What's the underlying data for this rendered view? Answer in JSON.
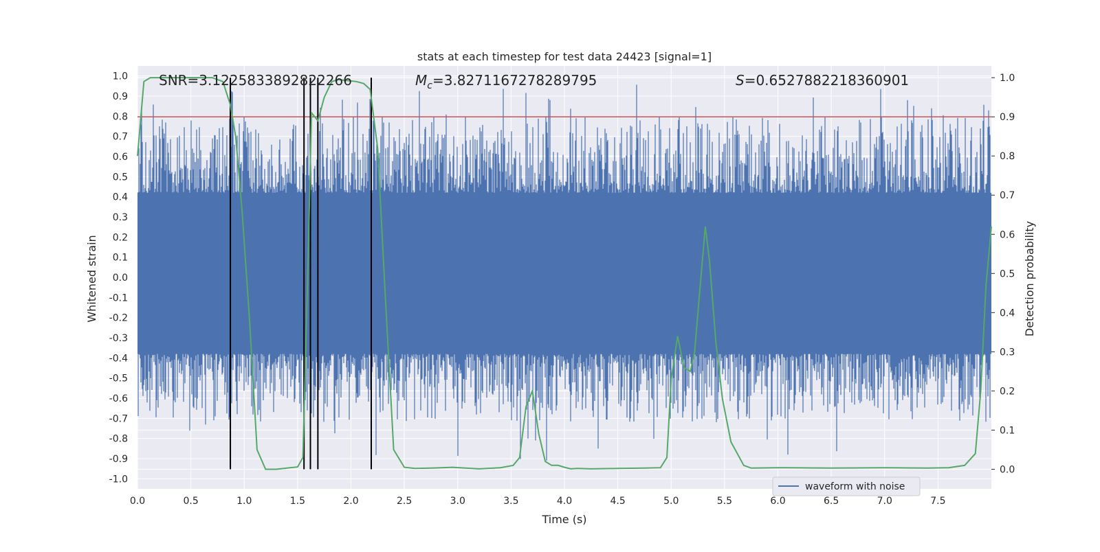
{
  "chart_data": {
    "type": "line",
    "title": "stats at each timestep for test data 24423 [signal=1]",
    "xlabel": "Time (s)",
    "ylabel_left": "Whitened strain",
    "ylabel_right": "Detection probability",
    "xlim": [
      0.0,
      8.0
    ],
    "ylim_left": [
      -1.05,
      1.05
    ],
    "ylim_right": [
      -0.05,
      1.03
    ],
    "x_ticks": [
      "0.0",
      "0.5",
      "1.0",
      "1.5",
      "2.0",
      "2.5",
      "3.0",
      "3.5",
      "4.0",
      "4.5",
      "5.0",
      "5.5",
      "6.0",
      "6.5",
      "7.0",
      "7.5"
    ],
    "y_ticks_left": [
      "1.0",
      "0.9",
      "0.8",
      "0.7",
      "0.6",
      "0.5",
      "0.4",
      "0.3",
      "0.2",
      "0.1",
      "0.0",
      "-0.1",
      "-0.2",
      "-0.3",
      "-0.4",
      "-0.5",
      "-0.6",
      "-0.7",
      "-0.8",
      "-0.9",
      "-1.0"
    ],
    "y_ticks_right": [
      "1.0",
      "0.9",
      "0.8",
      "0.7",
      "0.6",
      "0.5",
      "0.4",
      "0.3",
      "0.2",
      "0.1",
      "0.0"
    ],
    "annotations": {
      "snr": "SNR=3.1225833892822266",
      "mc_symbol": "M",
      "mc_sub": "c",
      "mc_value": "=3.8271167278289795",
      "s_symbol": "S",
      "s_value": "=0.6527882218360901"
    },
    "threshold": {
      "value": 0.9,
      "axis": "right",
      "color": "#c44e52"
    },
    "vertical_lines": [
      0.87,
      1.56,
      1.62,
      1.69,
      2.19
    ],
    "vertical_line_color": "#000000",
    "legend": {
      "label": "waveform with noise",
      "placement": "lower-right"
    },
    "grid": true,
    "colors": {
      "waveform": "#4c72b0",
      "probability": "#55a868",
      "background": "#eaeaf2"
    },
    "series": [
      {
        "name": "waveform with noise",
        "axis": "left",
        "description_values": {
          "band_lower": -0.38,
          "band_upper": 0.42,
          "max_peak": 1.0,
          "min_peak": -0.92
        }
      },
      {
        "axis": "right",
        "x": [
          0.0,
          0.06,
          0.12,
          0.2,
          0.3,
          0.5,
          0.7,
          0.8,
          0.87,
          0.92,
          0.98,
          1.05,
          1.12,
          1.2,
          1.3,
          1.4,
          1.5,
          1.55,
          1.6,
          1.63,
          1.69,
          1.75,
          1.82,
          1.88,
          1.95,
          2.05,
          2.12,
          2.18,
          2.25,
          2.32,
          2.4,
          2.5,
          2.6,
          2.75,
          2.95,
          3.2,
          3.4,
          3.52,
          3.58,
          3.64,
          3.7,
          3.76,
          3.82,
          3.88,
          3.94,
          4.0,
          4.06,
          4.12,
          4.25,
          4.5,
          4.75,
          4.9,
          4.96,
          5.0,
          5.06,
          5.12,
          5.18,
          5.22,
          5.26,
          5.32,
          5.36,
          5.42,
          5.48,
          5.56,
          5.62,
          5.68,
          5.75,
          6.0,
          6.5,
          7.0,
          7.4,
          7.6,
          7.75,
          7.85,
          7.9,
          7.95,
          8.0
        ],
        "values": [
          0.8,
          0.99,
          1.0,
          1.0,
          1.0,
          1.0,
          1.0,
          0.99,
          0.93,
          0.85,
          0.66,
          0.38,
          0.05,
          0.0,
          0.0,
          0.003,
          0.006,
          0.03,
          0.55,
          0.91,
          0.89,
          0.95,
          0.99,
          0.995,
          0.993,
          0.99,
          0.985,
          0.97,
          0.82,
          0.45,
          0.05,
          0.005,
          0.002,
          0.003,
          0.005,
          0.001,
          0.004,
          0.01,
          0.03,
          0.16,
          0.2,
          0.09,
          0.02,
          0.01,
          0.01,
          0.005,
          0.001,
          0.002,
          0.001,
          0.002,
          0.003,
          0.004,
          0.03,
          0.23,
          0.34,
          0.26,
          0.25,
          0.3,
          0.43,
          0.62,
          0.53,
          0.32,
          0.18,
          0.07,
          0.04,
          0.01,
          0.003,
          0.004,
          0.003,
          0.004,
          0.003,
          0.004,
          0.01,
          0.04,
          0.2,
          0.47,
          0.62
        ]
      }
    ]
  }
}
